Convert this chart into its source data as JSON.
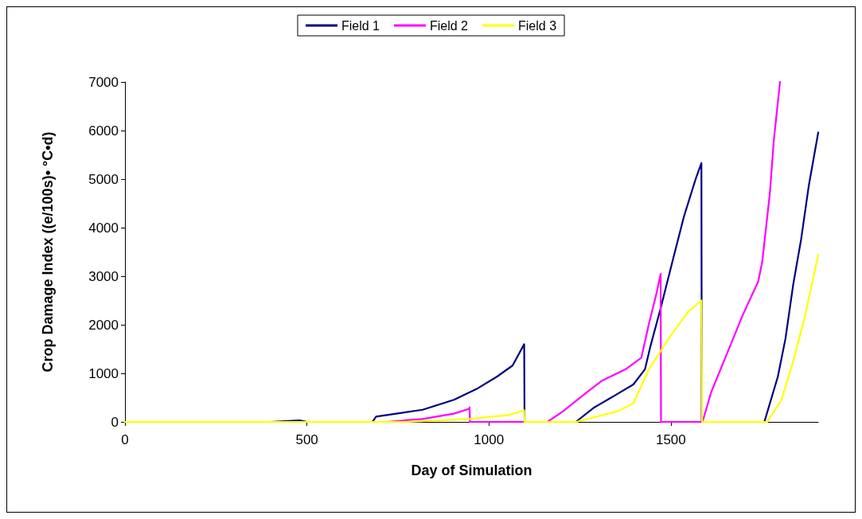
{
  "chart_data": {
    "type": "line",
    "xlabel": "Day of Simulation",
    "ylabel": "Crop Damage Index ((e/100s)• °C•d)",
    "xlim": [
      0,
      1905
    ],
    "xticks": [
      0,
      500,
      1000,
      1500
    ],
    "ylim": [
      0,
      7000
    ],
    "yticks": [
      0,
      1000,
      2000,
      3000,
      4000,
      5000,
      6000,
      7000
    ],
    "grid": false,
    "legend": "top",
    "marker": "none",
    "line_style": "solid",
    "series": [
      {
        "name": "Field 1",
        "color": "#000080",
        "x": [
          0,
          400,
          480,
          500,
          680,
          690,
          818,
          904,
          969,
          1022,
          1065,
          1097,
          1098,
          1239,
          1290,
          1344,
          1397,
          1429,
          1444,
          1472,
          1504,
          1536,
          1569,
          1584,
          1585,
          1757,
          1794,
          1815,
          1836,
          1858,
          1879,
          1905
        ],
        "values": [
          0,
          0,
          30,
          0,
          0,
          110,
          250,
          455,
          690,
          930,
          1160,
          1600,
          0,
          0,
          300,
          535,
          770,
          1085,
          1560,
          2340,
          3290,
          4230,
          5020,
          5330,
          0,
          0,
          930,
          1715,
          2815,
          3760,
          4860,
          5960
        ]
      },
      {
        "name": "Field 2",
        "color": "#ff00ff",
        "x": [
          0,
          720,
          818,
          904,
          946,
          947,
          948,
          1161,
          1204,
          1269,
          1311,
          1376,
          1419,
          1440,
          1461,
          1472,
          1473,
          1587,
          1611,
          1654,
          1697,
          1740,
          1751,
          1772,
          1783,
          1800
        ],
        "values": [
          0,
          0,
          60,
          170,
          270,
          300,
          0,
          0,
          220,
          610,
          850,
          1085,
          1320,
          2030,
          2660,
          3050,
          0,
          0,
          615,
          1400,
          2190,
          2890,
          3290,
          4700,
          5800,
          7000
        ]
      },
      {
        "name": "Field 3",
        "color": "#ffff00",
        "x": [
          0,
          770,
          947,
          1054,
          1097,
          1098,
          1240,
          1354,
          1397,
          1440,
          1494,
          1547,
          1584,
          1586,
          1765,
          1804,
          1836,
          1869,
          1905
        ],
        "values": [
          0,
          0,
          60,
          140,
          240,
          0,
          0,
          220,
          380,
          1085,
          1715,
          2265,
          2500,
          0,
          0,
          455,
          1240,
          2190,
          3445
        ]
      }
    ]
  }
}
